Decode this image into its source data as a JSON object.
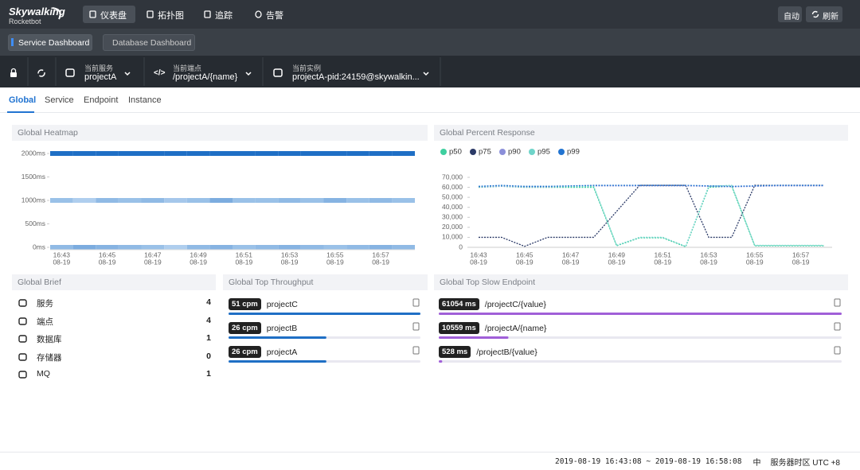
{
  "header": {
    "logo": "Skywalking",
    "logo_sub": "Rocketbot",
    "nav": [
      "仪表盘",
      "拓扑图",
      "追踪",
      "告警"
    ],
    "buttons": [
      "自动",
      "刷新"
    ]
  },
  "dashboards": [
    "Service Dashboard",
    "Database Dashboard"
  ],
  "selectors": [
    {
      "label": "当前服务",
      "value": "projectA"
    },
    {
      "label": "当前端点",
      "value": "/projectA/{name}"
    },
    {
      "label": "当前实例",
      "value": "projectA-pid:24159@skywalkin..."
    }
  ],
  "tabs": [
    "Global",
    "Service",
    "Endpoint",
    "Instance"
  ],
  "heatmap": {
    "type": "heatmap",
    "title": "Global Heatmap",
    "ylim": [
      0,
      2000
    ],
    "yticks": [
      {
        "value": 2000,
        "label": "2000ms"
      },
      {
        "value": 1500,
        "label": "1500ms"
      },
      {
        "value": 1000,
        "label": "1000ms"
      },
      {
        "value": 500,
        "label": "500ms"
      },
      {
        "value": 0,
        "label": "0ms"
      }
    ],
    "xtick_times": [
      "16:43",
      "16:45",
      "16:47",
      "16:49",
      "16:51",
      "16:53",
      "16:55",
      "16:57"
    ],
    "xtick_dates": [
      "08-19",
      "08-19",
      "08-19",
      "08-19",
      "08-19",
      "08-19",
      "08-19",
      "08-19"
    ],
    "color_low": "#d3e6f8",
    "color_high": "#1f6fc5",
    "rows": [
      {
        "y": 2000,
        "counts": [
          100,
          100,
          100,
          100,
          100,
          100,
          100,
          100,
          100,
          100,
          100,
          100,
          100,
          100,
          100,
          100
        ]
      },
      {
        "y": 1000,
        "counts": [
          40,
          30,
          45,
          40,
          45,
          35,
          40,
          55,
          40,
          40,
          45,
          40,
          50,
          40,
          45,
          40
        ]
      },
      {
        "y": 0,
        "counts": [
          45,
          55,
          50,
          45,
          40,
          30,
          45,
          50,
          40,
          45,
          50,
          45,
          40,
          45,
          50,
          45
        ]
      }
    ]
  },
  "percent_response": {
    "type": "line",
    "title": "Global Percent Response",
    "ylim": [
      0,
      70000
    ],
    "yticks": [
      {
        "value": 70000,
        "label": "70,000"
      },
      {
        "value": 60000,
        "label": "60,000"
      },
      {
        "value": 50000,
        "label": "50,000"
      },
      {
        "value": 40000,
        "label": "40,000"
      },
      {
        "value": 30000,
        "label": "30,000"
      },
      {
        "value": 20000,
        "label": "20,000"
      },
      {
        "value": 10000,
        "label": "10,000"
      },
      0
    ],
    "xtick_times": [
      "16:43",
      "16:45",
      "16:47",
      "16:49",
      "16:51",
      "16:53",
      "16:55",
      "16:57"
    ],
    "xtick_dates": [
      "08-19",
      "08-19",
      "08-19",
      "08-19",
      "08-19",
      "08-19",
      "08-19",
      "08-19"
    ],
    "series": [
      {
        "name": "p50",
        "color": "#3ecf9f",
        "values": [
          60000,
          61000,
          60000,
          60000,
          60000,
          60000,
          1500,
          9500,
          9500,
          500,
          60000,
          61000,
          1500,
          1500,
          1500,
          1500
        ]
      },
      {
        "name": "p75",
        "color": "#2b3a67",
        "values": [
          10000,
          10000,
          1000,
          10000,
          10000,
          10000,
          36000,
          62000,
          62000,
          62000,
          10000,
          10000,
          62000,
          62000,
          62000,
          62000
        ]
      },
      {
        "name": "p90",
        "color": "#8b8fd9",
        "values": [
          60500,
          61000,
          60500,
          60500,
          61000,
          61500,
          61500,
          61500,
          61500,
          61500,
          61000,
          60500,
          61000,
          61500,
          61500,
          61500
        ]
      },
      {
        "name": "p95",
        "color": "#6fd4c9",
        "values": [
          61000,
          61500,
          61000,
          61000,
          61000,
          61000,
          2000,
          10000,
          10000,
          1000,
          61000,
          62000,
          2000,
          2000,
          2000,
          2000
        ]
      },
      {
        "name": "p99",
        "color": "#2274d1",
        "values": [
          61000,
          62000,
          61000,
          61000,
          61500,
          62000,
          62000,
          62000,
          62000,
          62000,
          61500,
          61000,
          61500,
          62000,
          62000,
          62000
        ]
      }
    ]
  },
  "brief": {
    "title": "Global Brief",
    "items": [
      {
        "label": "服务",
        "value": 4
      },
      {
        "label": "端点",
        "value": 4
      },
      {
        "label": "数据库",
        "value": 1
      },
      {
        "label": "存储器",
        "value": 0
      },
      {
        "label": "MQ",
        "value": 1
      }
    ]
  },
  "throughput": {
    "title": "Global Top Throughput",
    "color": "#1f6fc5",
    "items": [
      {
        "label": "51 cpm",
        "value": 51,
        "name": "projectC"
      },
      {
        "label": "26 cpm",
        "value": 26,
        "name": "projectB"
      },
      {
        "label": "26 cpm",
        "value": 26,
        "name": "projectA"
      }
    ]
  },
  "slow_endpoints": {
    "title": "Global Top Slow Endpoint",
    "color": "#a05fd8",
    "items": [
      {
        "label": "61054 ms",
        "value": 61054,
        "name": "/projectC/{value}"
      },
      {
        "label": "10559 ms",
        "value": 10559,
        "name": "/projectA/{name}"
      },
      {
        "label": "528 ms",
        "value": 528,
        "name": "/projectB/{value}"
      }
    ]
  },
  "footer": {
    "time_range": "2019-08-19 16:43:08 ~ 2019-08-19 16:58:08",
    "language": "中",
    "timezone": "服务器时区 UTC +8"
  }
}
